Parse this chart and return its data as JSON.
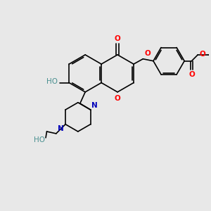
{
  "bg_color": "#e8e8e8",
  "bond_color": "#000000",
  "oxygen_color": "#ff0000",
  "nitrogen_color": "#0000bb",
  "hydroxyl_color": "#4a9090",
  "lw": 1.2,
  "figsize": [
    3.0,
    3.0
  ],
  "dpi": 100,
  "xlim": [
    0,
    10
  ],
  "ylim": [
    0,
    10
  ]
}
